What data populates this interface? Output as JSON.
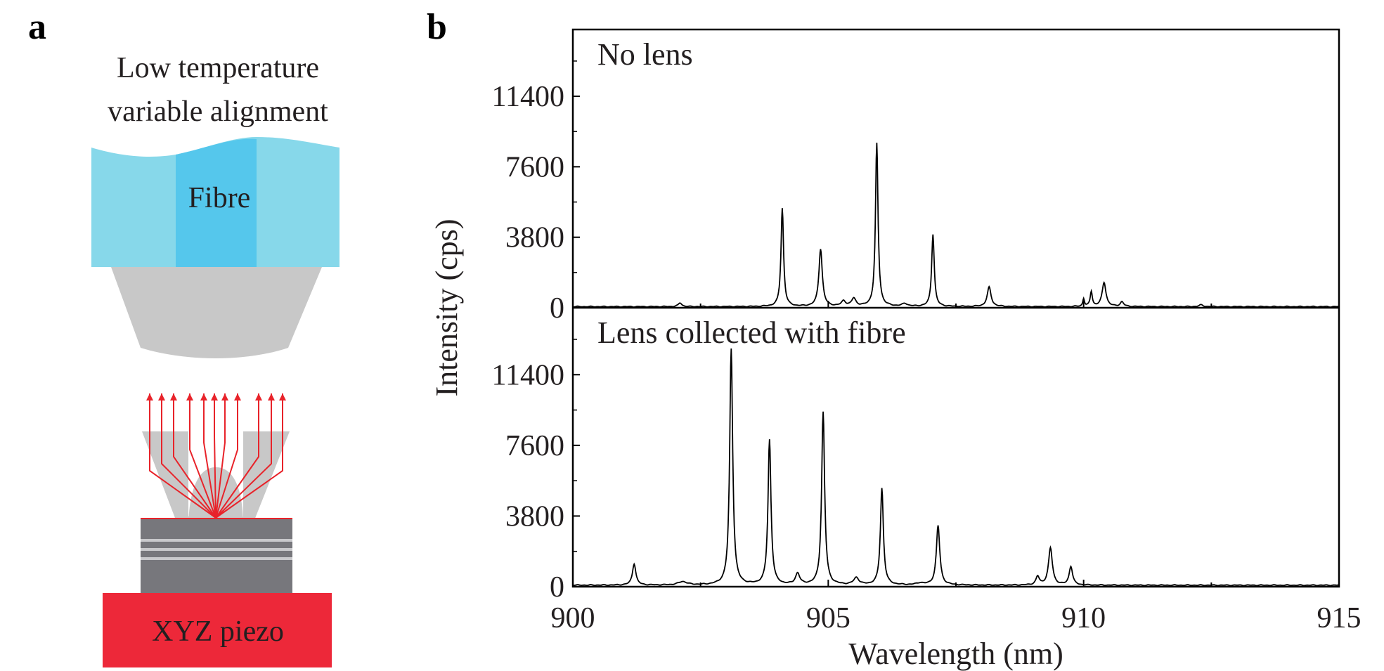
{
  "panel_a": {
    "letter": "a",
    "caption_line1": "Low temperature",
    "caption_line2": "variable alignment",
    "fibre_label": "Fibre",
    "piezo_label": "XYZ piezo",
    "colors": {
      "fibre_cladding": "#87d8ea",
      "fibre_core": "#55c7ec",
      "lens": "#c8c8c8",
      "rays": "#e8232a",
      "sample": "#77777c",
      "piezo": "#ed2839"
    }
  },
  "panel_b": {
    "letter": "b",
    "chart_data": {
      "type": "line",
      "xlabel": "Wavelength (nm)",
      "ylabel": "Intensity (cps)",
      "xlim": [
        900,
        915
      ],
      "x_ticks": [
        "900",
        "905",
        "910",
        "915"
      ],
      "line_color": "#000000",
      "panels": [
        {
          "label": "No lens",
          "ylim": [
            0,
            15000
          ],
          "y_ticks": [
            "0",
            "3800",
            "7600",
            "11400"
          ],
          "baseline": 60,
          "peaks": [
            {
              "x": 902.1,
              "y": 200,
              "w": 0.04
            },
            {
              "x": 904.1,
              "y": 5300,
              "w": 0.03
            },
            {
              "x": 904.85,
              "y": 3100,
              "w": 0.04
            },
            {
              "x": 905.3,
              "y": 280,
              "w": 0.05
            },
            {
              "x": 905.5,
              "y": 420,
              "w": 0.05
            },
            {
              "x": 905.95,
              "y": 8800,
              "w": 0.03
            },
            {
              "x": 906.5,
              "y": 150,
              "w": 0.06
            },
            {
              "x": 907.05,
              "y": 3900,
              "w": 0.03
            },
            {
              "x": 908.15,
              "y": 1050,
              "w": 0.045
            },
            {
              "x": 910.0,
              "y": 420,
              "w": 0.02
            },
            {
              "x": 910.15,
              "y": 800,
              "w": 0.025
            },
            {
              "x": 910.4,
              "y": 1300,
              "w": 0.045
            },
            {
              "x": 910.75,
              "y": 250,
              "w": 0.04
            },
            {
              "x": 912.3,
              "y": 90,
              "w": 0.05
            }
          ]
        },
        {
          "label": "Lens collected with fibre",
          "ylim": [
            0,
            15000
          ],
          "y_ticks": [
            "0",
            "3800",
            "7600",
            "11400"
          ],
          "baseline": 80,
          "peaks": [
            {
              "x": 901.2,
              "y": 1150,
              "w": 0.04
            },
            {
              "x": 902.15,
              "y": 180,
              "w": 0.1
            },
            {
              "x": 903.1,
              "y": 12700,
              "w": 0.035
            },
            {
              "x": 903.85,
              "y": 7800,
              "w": 0.035
            },
            {
              "x": 904.4,
              "y": 600,
              "w": 0.05
            },
            {
              "x": 904.9,
              "y": 9300,
              "w": 0.035
            },
            {
              "x": 905.55,
              "y": 380,
              "w": 0.06
            },
            {
              "x": 906.05,
              "y": 5200,
              "w": 0.035
            },
            {
              "x": 906.8,
              "y": 100,
              "w": 0.08
            },
            {
              "x": 907.15,
              "y": 3200,
              "w": 0.04
            },
            {
              "x": 909.1,
              "y": 450,
              "w": 0.04
            },
            {
              "x": 909.35,
              "y": 2000,
              "w": 0.045
            },
            {
              "x": 909.75,
              "y": 1000,
              "w": 0.04
            }
          ]
        }
      ]
    }
  }
}
